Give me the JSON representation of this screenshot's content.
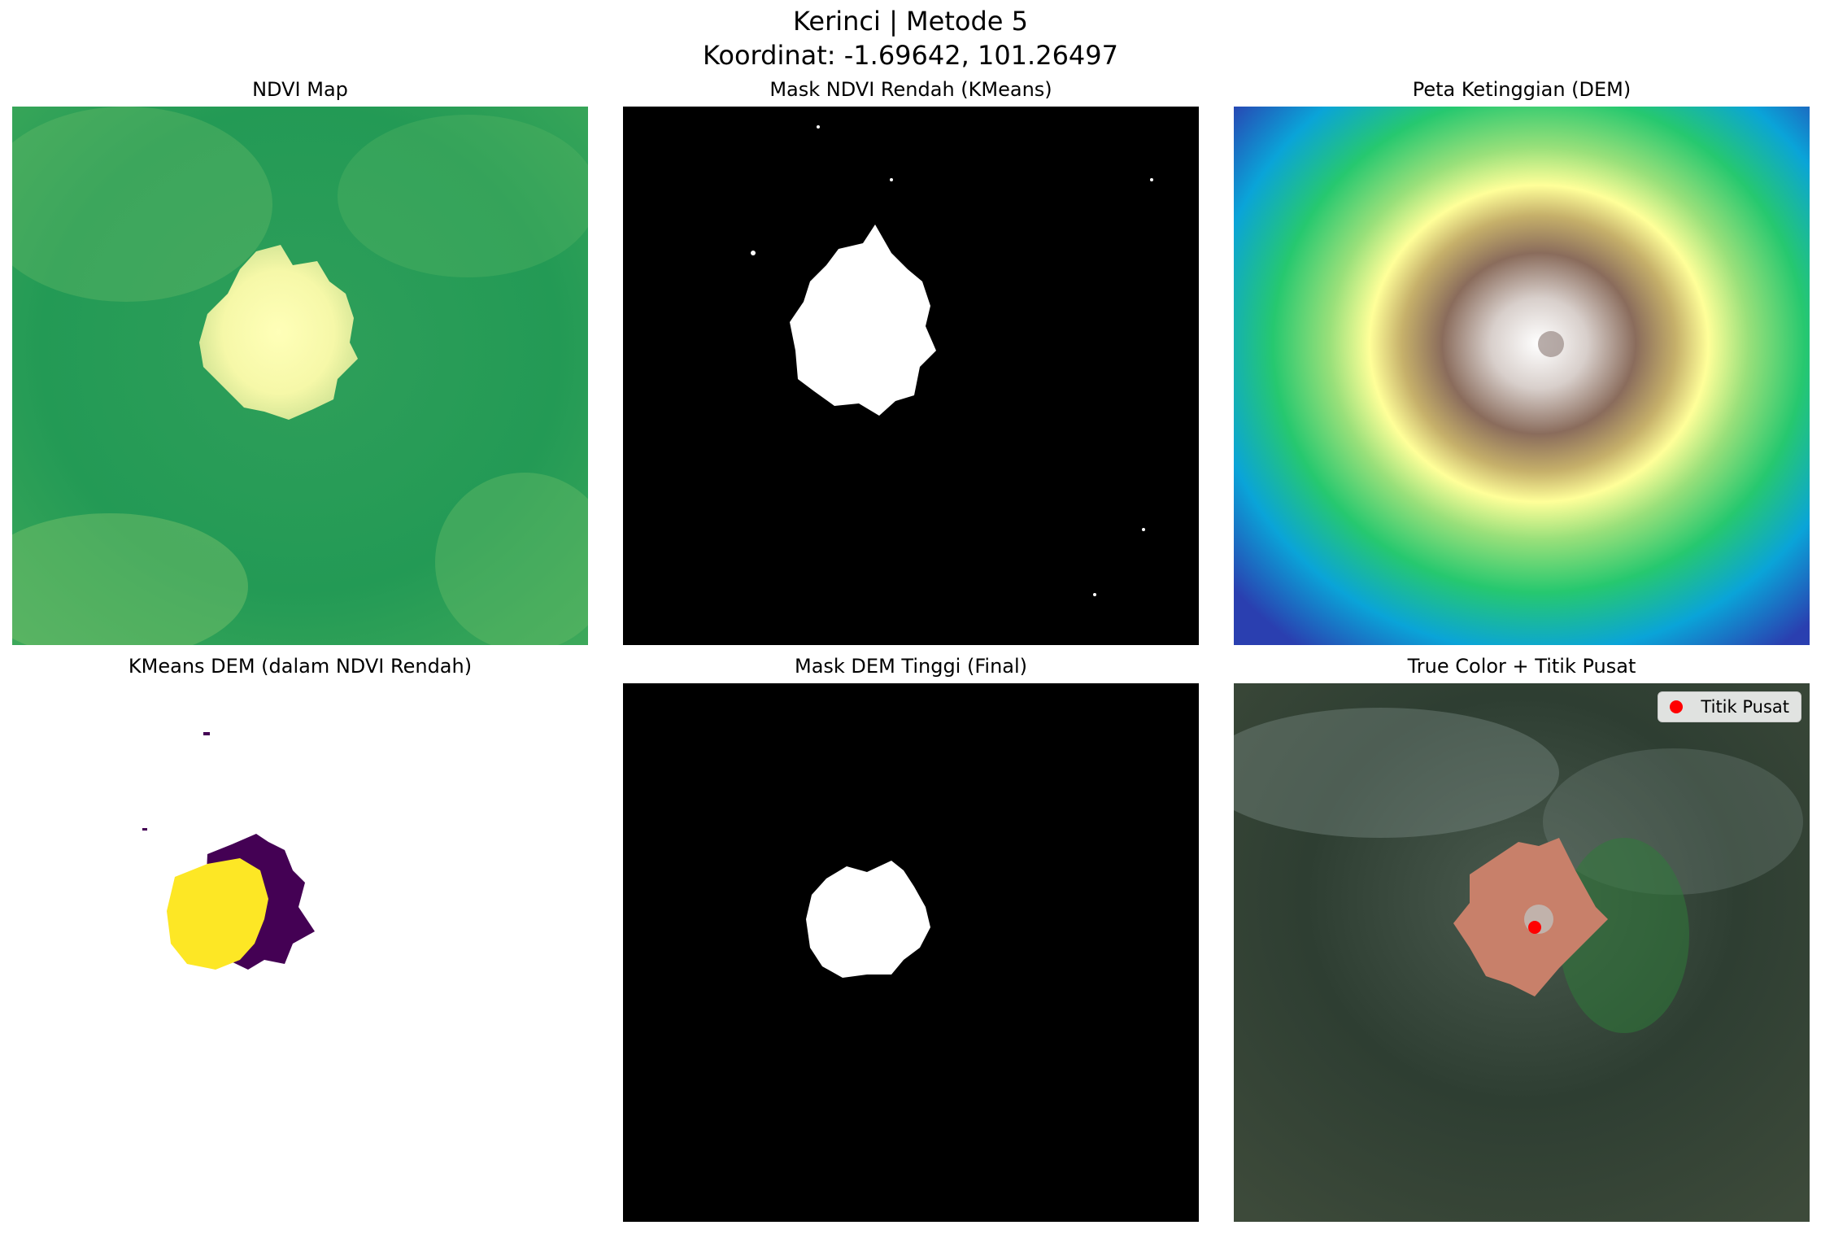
{
  "figure": {
    "title_line1": "Kerinci | Metode 5",
    "title_line2": "Koordinat: -1.69642, 101.26497"
  },
  "panels": [
    {
      "title": "NDVI Map",
      "colormap": "summer",
      "colors": [
        "#008066",
        "#ffff66"
      ]
    },
    {
      "title": "Mask NDVI Rendah (KMeans)",
      "colormap": "gray",
      "colors": [
        "#000000",
        "#ffffff"
      ]
    },
    {
      "title": "Peta Ketinggian (DEM)",
      "colormap": "terrain",
      "colors": [
        "#333399",
        "#0099ff",
        "#00cc66",
        "#ffff99",
        "#80604d",
        "#ffffff"
      ]
    },
    {
      "title": "KMeans DEM (dalam NDVI Rendah)",
      "colormap": "viridis",
      "colors": [
        "#440154",
        "#fde725"
      ]
    },
    {
      "title": "Mask DEM Tinggi (Final)",
      "colormap": "gray",
      "colors": [
        "#000000",
        "#ffffff"
      ]
    },
    {
      "title": "True Color + Titik Pusat",
      "colormap": "rgb",
      "marker_color": "#ff0000"
    }
  ],
  "legend": {
    "label": "Titik Pusat",
    "marker": "red-dot-icon"
  }
}
